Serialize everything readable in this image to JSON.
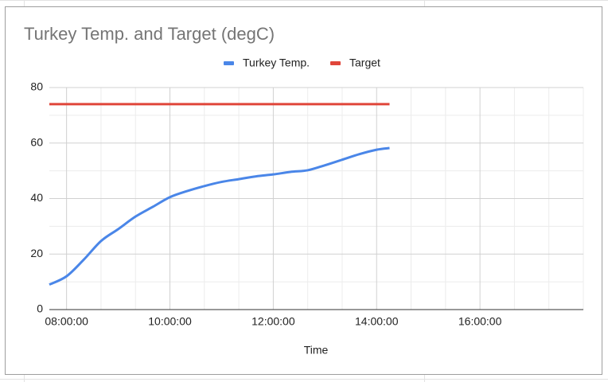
{
  "chart_data": {
    "type": "line",
    "title": "Turkey Temp. and Target (degC)",
    "x_label": "Time",
    "x": [
      "07:40:00",
      "08:00:00",
      "08:20:00",
      "08:40:00",
      "09:00:00",
      "09:20:00",
      "09:40:00",
      "10:00:00",
      "10:20:00",
      "10:40:00",
      "11:00:00",
      "11:20:00",
      "11:40:00",
      "12:00:00",
      "12:20:00",
      "12:40:00",
      "13:00:00",
      "13:20:00",
      "13:40:00",
      "14:00:00",
      "14:15:00"
    ],
    "series": [
      {
        "name": "Turkey Temp.",
        "color": "#4a86e8",
        "values": [
          9,
          12,
          18,
          24.7,
          29,
          33.5,
          37,
          40.5,
          42.7,
          44.5,
          46,
          47,
          48,
          48.7,
          49.6,
          50.2,
          52,
          54,
          56,
          57.6,
          58.2
        ]
      },
      {
        "name": "Target",
        "color": "#e0463a",
        "values": [
          74,
          74,
          74,
          74,
          74,
          74,
          74,
          74,
          74,
          74,
          74,
          74,
          74,
          74,
          74,
          74,
          74,
          74,
          74,
          74,
          74
        ]
      }
    ],
    "xlim": [
      "07:40:00",
      "18:00:00"
    ],
    "xticks": [
      "08:00:00",
      "10:00:00",
      "12:00:00",
      "14:00:00",
      "16:00:00"
    ],
    "ylim": [
      0,
      80
    ],
    "yticks": [
      0,
      20,
      40,
      60,
      80
    ],
    "grid": true,
    "legend": "top"
  }
}
